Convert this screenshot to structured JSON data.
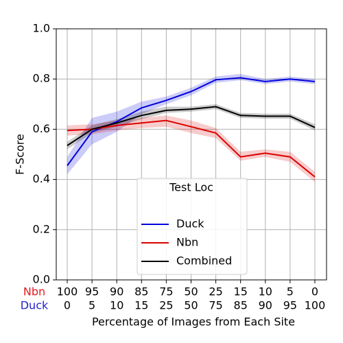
{
  "chart_data": {
    "type": "line",
    "x_label_rows": [
      {
        "name": "Nbn",
        "color": "#e41a1c",
        "labels": [
          "100",
          "95",
          "90",
          "85",
          "75",
          "50",
          "25",
          "15",
          "10",
          "5",
          "0"
        ]
      },
      {
        "name": "Duck",
        "color": "#1f1fd0",
        "labels": [
          "0",
          "5",
          "10",
          "15",
          "25",
          "50",
          "75",
          "85",
          "90",
          "95",
          "100"
        ]
      }
    ],
    "xlabel": "Percentage of Images from Each Site",
    "ylabel": "F-Score",
    "ylim": [
      0,
      1
    ],
    "yticks": [
      {
        "value": 0,
        "label": "0.0"
      },
      {
        "value": 0.2,
        "label": "0.2"
      },
      {
        "value": 0.4,
        "label": "0.4"
      },
      {
        "value": 0.6,
        "label": "0.6"
      },
      {
        "value": 0.8,
        "label": "0.8"
      },
      {
        "value": 1,
        "label": "1.0"
      }
    ],
    "grid": true,
    "legend": {
      "title": "Test Loc",
      "position": "lower center"
    },
    "series": [
      {
        "name": "Duck",
        "color": "#0000dd",
        "values": [
          0.455,
          0.59,
          0.63,
          0.685,
          0.715,
          0.75,
          0.797,
          0.805,
          0.79,
          0.8,
          0.79
        ],
        "lower": [
          0.42,
          0.54,
          0.59,
          0.66,
          0.7,
          0.735,
          0.785,
          0.795,
          0.78,
          0.79,
          0.78
        ],
        "upper": [
          0.49,
          0.645,
          0.67,
          0.71,
          0.73,
          0.765,
          0.81,
          0.82,
          0.8,
          0.81,
          0.8
        ]
      },
      {
        "name": "Nbn",
        "color": "#dd0000",
        "values": [
          0.595,
          0.6,
          0.615,
          0.625,
          0.635,
          0.61,
          0.585,
          0.49,
          0.505,
          0.49,
          0.41
        ],
        "lower": [
          0.575,
          0.58,
          0.595,
          0.605,
          0.61,
          0.585,
          0.565,
          0.475,
          0.49,
          0.47,
          0.39
        ],
        "upper": [
          0.615,
          0.62,
          0.635,
          0.645,
          0.655,
          0.635,
          0.605,
          0.51,
          0.52,
          0.51,
          0.43
        ]
      },
      {
        "name": "Combined",
        "color": "#000000",
        "values": [
          0.535,
          0.6,
          0.625,
          0.655,
          0.675,
          0.68,
          0.69,
          0.655,
          0.652,
          0.652,
          0.607
        ],
        "lower": [
          0.52,
          0.585,
          0.61,
          0.64,
          0.665,
          0.67,
          0.68,
          0.645,
          0.642,
          0.642,
          0.595
        ],
        "upper": [
          0.55,
          0.615,
          0.64,
          0.67,
          0.69,
          0.69,
          0.7,
          0.665,
          0.662,
          0.662,
          0.62
        ]
      }
    ]
  }
}
